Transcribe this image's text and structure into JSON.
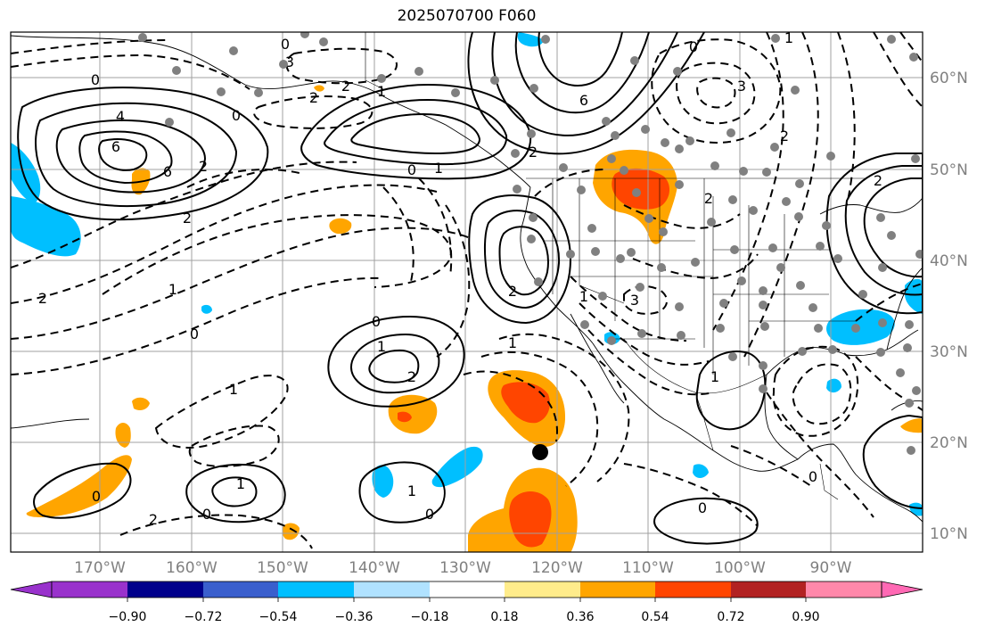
{
  "title": "2025070700 F060",
  "map": {
    "lon_labels": [
      "170°W",
      "160°W",
      "150°W",
      "140°W",
      "130°W",
      "120°W",
      "110°W",
      "100°W",
      "90°W"
    ],
    "lat_labels": [
      "60°N",
      "50°N",
      "40°N",
      "30°N",
      "20°N",
      "10°N"
    ],
    "contour_labels": [
      "0",
      "4",
      "6",
      "6",
      "2",
      "2",
      "0",
      "0",
      "3",
      "2",
      "2",
      "1",
      "0",
      "1",
      "6",
      "2",
      "0",
      "3",
      "2",
      "1",
      "2",
      "0",
      "1",
      "2",
      "1",
      "3",
      "0",
      "1",
      "0",
      "1",
      "2",
      "2",
      "1",
      "1",
      "1",
      "0",
      "0",
      "0",
      "0",
      "2",
      "2",
      "1"
    ],
    "colors": {
      "grid": "#a0a0a0",
      "axis_label": "#808080",
      "contour": "#000000",
      "station_dot": "#808080",
      "positive_low": "#ffa500",
      "positive_mid": "#ff4500",
      "negative_low": "#00bfff"
    },
    "marker": "center-dot"
  },
  "colorbar": {
    "ticks": [
      "−0.90",
      "−0.72",
      "−0.54",
      "−0.36",
      "−0.18",
      "0.18",
      "0.36",
      "0.54",
      "0.72",
      "0.90"
    ],
    "colors": [
      "#9932cc",
      "#00008b",
      "#3a5fcd",
      "#00bfff",
      "#b0e2ff",
      "#ffffff",
      "#ffec8b",
      "#ffa500",
      "#ff4500",
      "#b22222",
      "#ff88aa",
      "#ff69b4"
    ]
  }
}
